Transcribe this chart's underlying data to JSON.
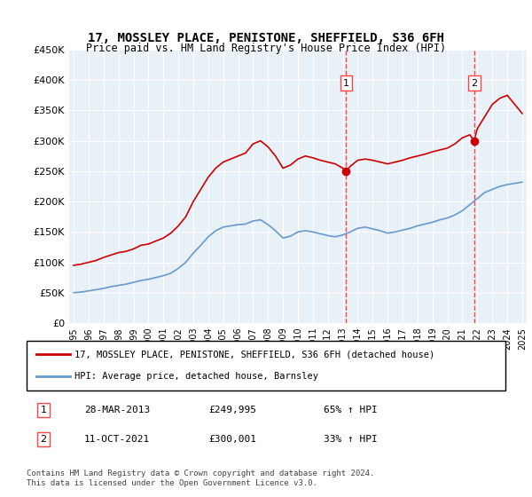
{
  "title": "17, MOSSLEY PLACE, PENISTONE, SHEFFIELD, S36 6FH",
  "subtitle": "Price paid vs. HM Land Registry's House Price Index (HPI)",
  "ylabel_ticks": [
    "£0",
    "£50K",
    "£100K",
    "£150K",
    "£200K",
    "£250K",
    "£300K",
    "£350K",
    "£400K",
    "£450K"
  ],
  "ylim": [
    0,
    450000
  ],
  "xlim_years": [
    1995,
    2025
  ],
  "xticks": [
    1995,
    1996,
    1997,
    1998,
    1999,
    2000,
    2001,
    2002,
    2003,
    2004,
    2005,
    2006,
    2007,
    2008,
    2009,
    2010,
    2011,
    2012,
    2013,
    2014,
    2015,
    2016,
    2017,
    2018,
    2019,
    2020,
    2021,
    2022,
    2023,
    2024,
    2025
  ],
  "red_line_color": "#cc0000",
  "blue_line_color": "#6699cc",
  "marker_color": "#cc0000",
  "vline_color": "#ff4444",
  "point1_year": 2013.23,
  "point1_value": 249995,
  "point2_year": 2021.78,
  "point2_value": 300001,
  "legend_red": "17, MOSSLEY PLACE, PENISTONE, SHEFFIELD, S36 6FH (detached house)",
  "legend_blue": "HPI: Average price, detached house, Barnsley",
  "annotation1_label": "1",
  "annotation2_label": "2",
  "table_row1": [
    "1",
    "28-MAR-2013",
    "£249,995",
    "65% ↑ HPI"
  ],
  "table_row2": [
    "2",
    "11-OCT-2021",
    "£300,001",
    "33% ↑ HPI"
  ],
  "footer": "Contains HM Land Registry data © Crown copyright and database right 2024.\nThis data is licensed under the Open Government Licence v3.0.",
  "plot_bg_color": "#e8f0f8",
  "fig_bg_color": "#ffffff",
  "grid_color": "#ffffff",
  "red_hpi_data": {
    "years": [
      1995,
      1995.5,
      1996,
      1996.5,
      1997,
      1997.5,
      1998,
      1998.5,
      1999,
      1999.5,
      2000,
      2000.5,
      2001,
      2001.5,
      2002,
      2002.5,
      2003,
      2003.5,
      2004,
      2004.5,
      2005,
      2005.5,
      2006,
      2006.5,
      2007,
      2007.5,
      2008,
      2008.5,
      2009,
      2009.5,
      2010,
      2010.5,
      2011,
      2011.5,
      2012,
      2012.5,
      2013,
      2013.23,
      2013.5,
      2014,
      2014.5,
      2015,
      2015.5,
      2016,
      2016.5,
      2017,
      2017.5,
      2018,
      2018.5,
      2019,
      2019.5,
      2020,
      2020.5,
      2021,
      2021.5,
      2021.78,
      2022,
      2022.5,
      2023,
      2023.5,
      2024,
      2024.5,
      2025
    ],
    "values": [
      95000,
      97000,
      100000,
      103000,
      108000,
      112000,
      116000,
      118000,
      122000,
      128000,
      130000,
      135000,
      140000,
      148000,
      160000,
      175000,
      200000,
      220000,
      240000,
      255000,
      265000,
      270000,
      275000,
      280000,
      295000,
      300000,
      290000,
      275000,
      255000,
      260000,
      270000,
      275000,
      272000,
      268000,
      265000,
      262000,
      255000,
      249995,
      258000,
      268000,
      270000,
      268000,
      265000,
      262000,
      265000,
      268000,
      272000,
      275000,
      278000,
      282000,
      285000,
      288000,
      295000,
      305000,
      310000,
      300001,
      320000,
      340000,
      360000,
      370000,
      375000,
      360000,
      345000
    ]
  },
  "blue_hpi_data": {
    "years": [
      1995,
      1995.5,
      1996,
      1996.5,
      1997,
      1997.5,
      1998,
      1998.5,
      1999,
      1999.5,
      2000,
      2000.5,
      2001,
      2001.5,
      2002,
      2002.5,
      2003,
      2003.5,
      2004,
      2004.5,
      2005,
      2005.5,
      2006,
      2006.5,
      2007,
      2007.5,
      2008,
      2008.5,
      2009,
      2009.5,
      2010,
      2010.5,
      2011,
      2011.5,
      2012,
      2012.5,
      2013,
      2013.5,
      2014,
      2014.5,
      2015,
      2015.5,
      2016,
      2016.5,
      2017,
      2017.5,
      2018,
      2018.5,
      2019,
      2019.5,
      2020,
      2020.5,
      2021,
      2021.5,
      2022,
      2022.5,
      2023,
      2023.5,
      2024,
      2024.5,
      2025
    ],
    "values": [
      50000,
      51000,
      53000,
      55000,
      57000,
      60000,
      62000,
      64000,
      67000,
      70000,
      72000,
      75000,
      78000,
      82000,
      90000,
      100000,
      115000,
      128000,
      142000,
      152000,
      158000,
      160000,
      162000,
      163000,
      168000,
      170000,
      162000,
      152000,
      140000,
      143000,
      150000,
      152000,
      150000,
      147000,
      144000,
      142000,
      145000,
      150000,
      156000,
      158000,
      155000,
      152000,
      148000,
      150000,
      153000,
      156000,
      160000,
      163000,
      166000,
      170000,
      173000,
      178000,
      185000,
      195000,
      205000,
      215000,
      220000,
      225000,
      228000,
      230000,
      232000
    ]
  }
}
